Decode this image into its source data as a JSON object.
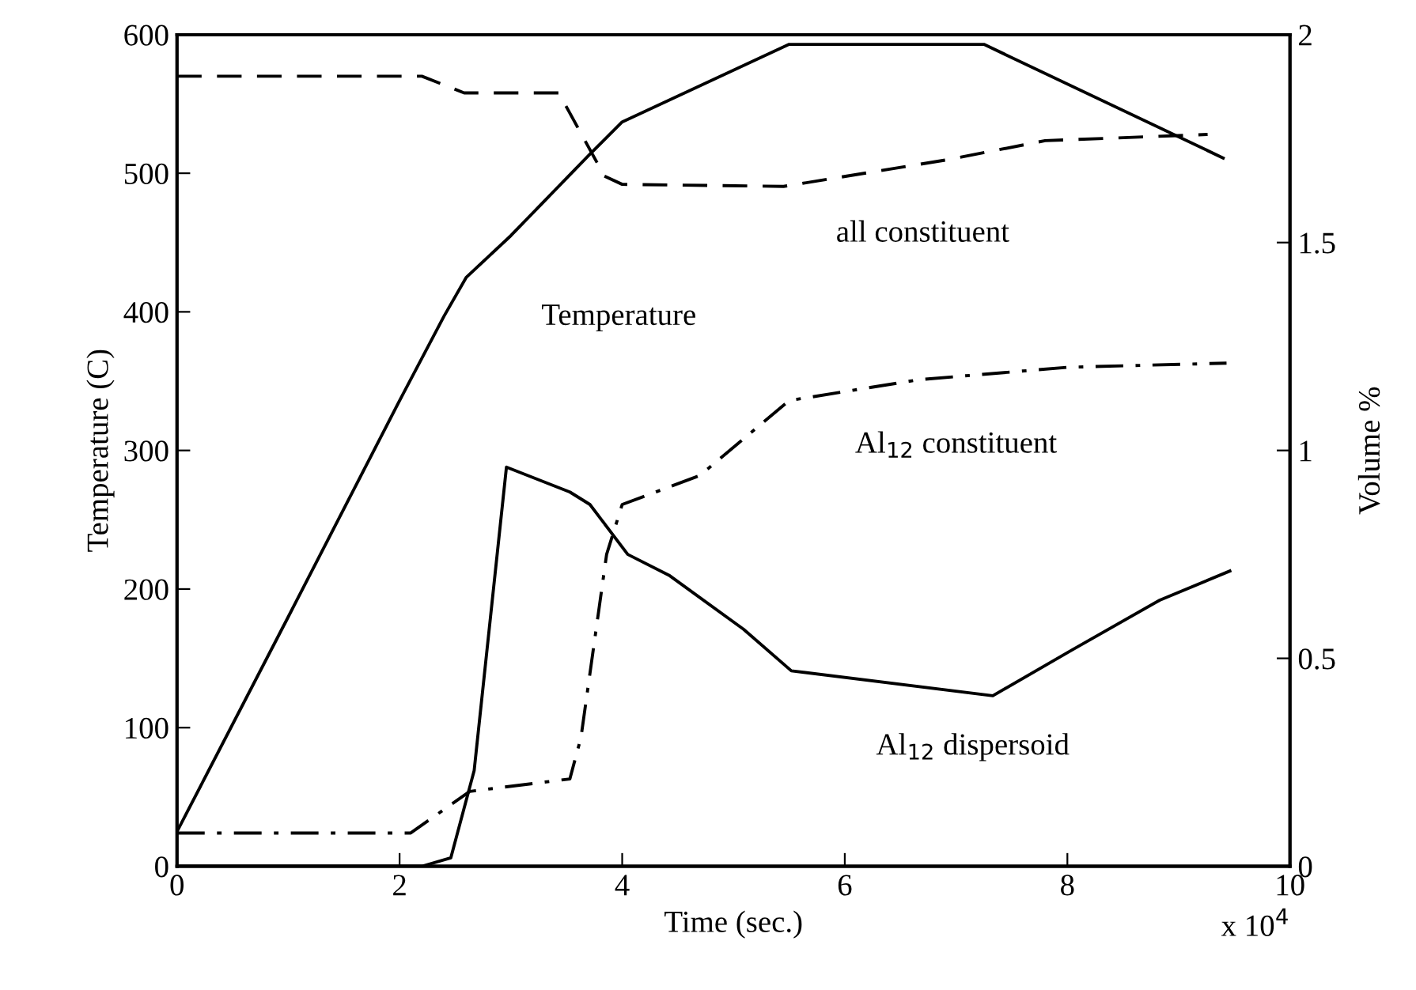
{
  "chart_data": {
    "type": "line",
    "xlabel": "Time (sec.)",
    "ylabel": "Temperature (C)",
    "y2label": "Volume %",
    "xlim": [
      0,
      10
    ],
    "xticks": [
      0,
      2,
      4,
      6,
      8,
      10
    ],
    "ylim": [
      0,
      600
    ],
    "yticks": [
      0,
      100,
      200,
      300,
      400,
      500,
      600
    ],
    "y2lim": [
      0,
      2
    ],
    "y2ticks": [
      0,
      0.5,
      1,
      1.5,
      2
    ],
    "grid": false,
    "legend": false,
    "marker": "none",
    "series": [
      {
        "color": "#000000",
        "line_style": "solid",
        "x": [
          0,
          1.0,
          2.0,
          2.4,
          2.6,
          3.0,
          3.7,
          4.0,
          5.5,
          7.25,
          9.4
        ],
        "values": [
          25,
          180,
          336,
          397,
          425,
          455,
          513,
          537,
          593,
          593,
          511
        ]
      },
      {
        "color": "#000000",
        "line_style": "dashed",
        "axis": "y2",
        "x": [
          0,
          2.2,
          2.58,
          3.43,
          3.84,
          4.0,
          5.45,
          6.94,
          7.8,
          9.26
        ],
        "values": [
          1.9,
          1.9,
          1.86,
          1.86,
          1.66,
          1.64,
          1.635,
          1.7,
          1.745,
          1.76
        ]
      },
      {
        "color": "#000000",
        "line_style": "dashdot",
        "axis": "y2",
        "x": [
          0,
          2.1,
          2.63,
          3.53,
          3.63,
          3.86,
          4.0,
          4.7,
          5.5,
          6.66,
          8.0,
          9.43
        ],
        "values": [
          0.08,
          0.08,
          0.18,
          0.21,
          0.31,
          0.75,
          0.87,
          0.94,
          1.12,
          1.17,
          1.2,
          1.21
        ]
      },
      {
        "color": "#000000",
        "line_style": "solid",
        "axis": "y2",
        "x": [
          0,
          2.2,
          2.46,
          2.67,
          2.96,
          3.53,
          3.71,
          4.05,
          4.42,
          5.09,
          5.52,
          7.33,
          8.04,
          8.83,
          9.46
        ],
        "values": [
          0,
          0,
          0.02,
          0.23,
          0.96,
          0.9,
          0.87,
          0.75,
          0.7,
          0.57,
          0.47,
          0.41,
          0.52,
          0.64,
          0.71
        ]
      }
    ],
    "annotations": [
      "Temperature",
      "all constituent",
      "Al$_{12}$ constituent",
      "Al$_{12}$ dispersoid",
      "x 10$^{4}$"
    ]
  }
}
